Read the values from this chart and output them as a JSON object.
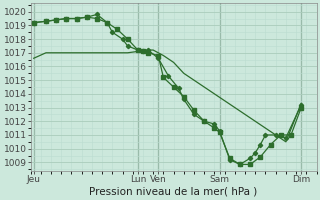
{
  "background_color": "#cce8dc",
  "grid_color_major": "#aaccbb",
  "grid_color_minor": "#bbddd0",
  "line_color": "#2d6e2d",
  "xlabel": "Pression niveau de la mer( hPa )",
  "ylim": [
    1008.4,
    1020.6
  ],
  "yticks": [
    1009,
    1010,
    1011,
    1012,
    1013,
    1014,
    1015,
    1016,
    1017,
    1018,
    1019,
    1020
  ],
  "xlim": [
    0,
    28
  ],
  "xtick_labels": [
    "Jeu",
    "Lun",
    "Ven",
    "Sam",
    "Dim"
  ],
  "xtick_positions": [
    0.3,
    10.5,
    12.5,
    18.5,
    26.5
  ],
  "vline_positions": [
    0.3,
    10.5,
    12.5,
    18.5,
    26.5
  ],
  "line1_x": [
    0.3,
    1.5,
    2.5,
    3.5,
    4.5,
    5.5,
    6.5,
    7.5,
    8.5,
    9.5,
    10.5,
    11.5,
    12.0,
    13.0,
    14.0,
    15.0,
    16.0,
    17.0,
    18.0,
    19.0,
    20.0,
    21.0,
    22.0,
    23.0,
    24.0,
    25.0,
    26.5
  ],
  "line1_y": [
    1016.6,
    1017.0,
    1017.0,
    1017.0,
    1017.0,
    1017.0,
    1017.0,
    1017.0,
    1017.0,
    1017.0,
    1017.1,
    1017.2,
    1017.2,
    1016.8,
    1016.3,
    1015.5,
    1015.0,
    1014.5,
    1014.0,
    1013.5,
    1013.0,
    1012.5,
    1012.0,
    1011.5,
    1011.0,
    1010.5,
    1013.3
  ],
  "line2_x": [
    0.3,
    1.5,
    2.5,
    3.5,
    4.5,
    5.5,
    6.5,
    7.5,
    8.5,
    9.5,
    10.5,
    11.0,
    11.5,
    12.5,
    13.0,
    14.0,
    15.0,
    16.0,
    17.0,
    18.0,
    18.5,
    19.5,
    20.5,
    21.5,
    22.5,
    23.5,
    24.5,
    25.5,
    26.5
  ],
  "line2_y": [
    1019.2,
    1019.3,
    1019.4,
    1019.5,
    1019.5,
    1019.6,
    1019.5,
    1019.2,
    1018.7,
    1018.0,
    1017.2,
    1017.1,
    1017.0,
    1016.8,
    1015.2,
    1014.5,
    1013.8,
    1012.8,
    1012.0,
    1011.5,
    1011.2,
    1009.3,
    1008.85,
    1008.85,
    1009.4,
    1010.3,
    1011.0,
    1011.0,
    1013.0
  ],
  "line3_x": [
    0.3,
    1.5,
    2.5,
    3.5,
    4.5,
    5.5,
    6.5,
    7.5,
    8.0,
    9.0,
    9.5,
    10.5,
    11.0,
    11.5,
    12.5,
    13.5,
    14.5,
    15.0,
    16.0,
    17.0,
    18.0,
    18.5,
    19.5,
    20.5,
    21.5,
    22.0,
    22.5,
    23.0,
    24.0,
    25.0,
    26.5
  ],
  "line3_y": [
    1019.2,
    1019.3,
    1019.4,
    1019.5,
    1019.5,
    1019.6,
    1019.8,
    1019.2,
    1018.5,
    1018.0,
    1017.5,
    1017.2,
    1017.1,
    1017.2,
    1016.6,
    1015.3,
    1014.4,
    1013.6,
    1012.5,
    1012.0,
    1011.8,
    1011.3,
    1009.2,
    1008.85,
    1009.3,
    1009.7,
    1010.3,
    1011.0,
    1011.0,
    1010.8,
    1013.2
  ]
}
